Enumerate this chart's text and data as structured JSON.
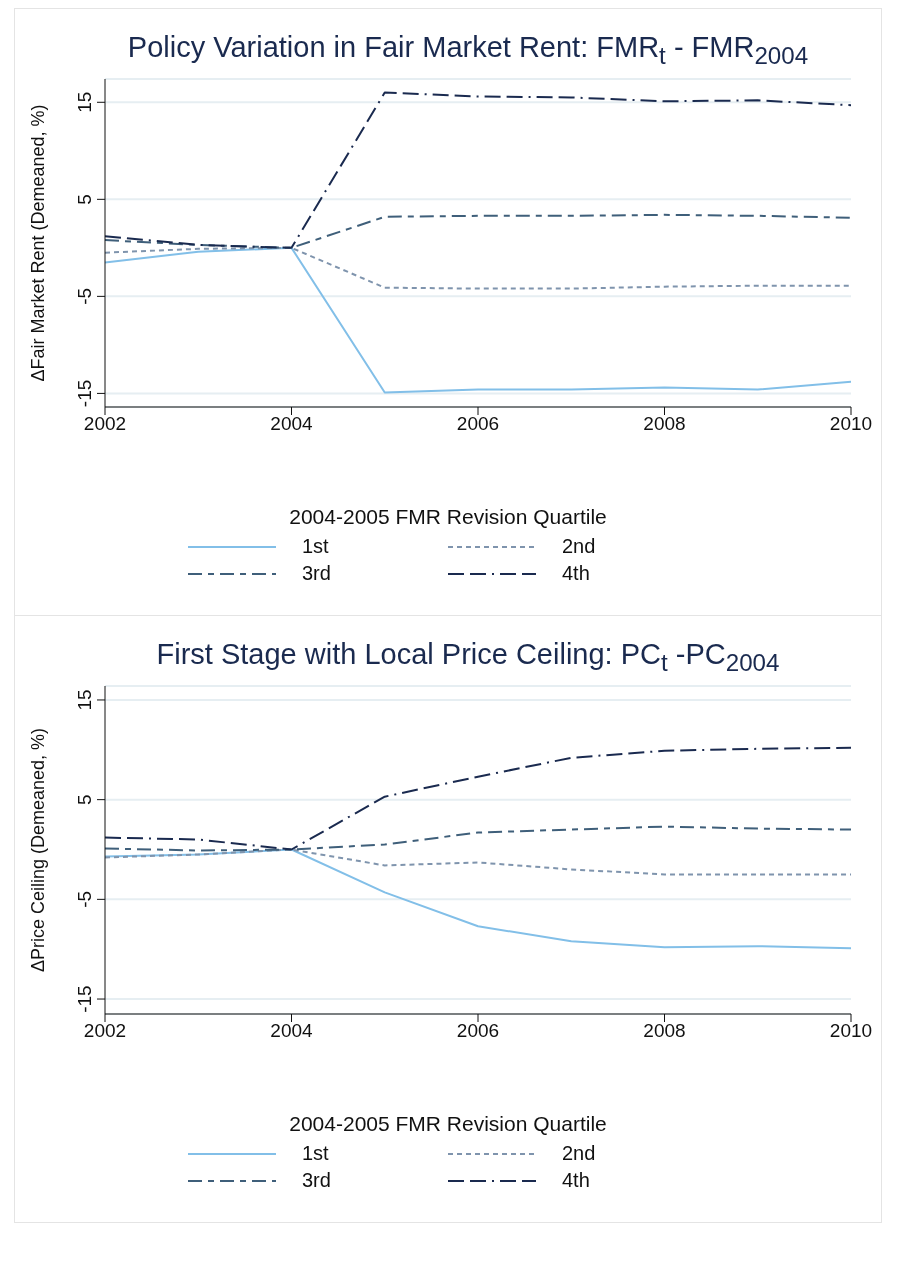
{
  "chart_data": [
    {
      "type": "line",
      "title": "Policy Variation in Fair Market Rent: FMR$_{t}$ - FMR$_{2004}$",
      "ylabel": "ΔFair Market Rent (Demeaned, %)",
      "legend_title": "2004-2005 FMR Revision Quartile",
      "x": [
        2002,
        2003,
        2004,
        2005,
        2006,
        2007,
        2008,
        2009,
        2010
      ],
      "series": [
        {
          "name": "1st",
          "color": "#82bfe8",
          "line_style": "solid",
          "values": [
            -1.5,
            -0.4,
            0.0,
            -14.9,
            -14.6,
            -14.6,
            -14.4,
            -14.6,
            -13.8
          ]
        },
        {
          "name": "2nd",
          "color": "#7f94ad",
          "line_style": "dashed",
          "values": [
            -0.5,
            -0.1,
            0.0,
            -4.1,
            -4.2,
            -4.2,
            -4.0,
            -3.9,
            -3.9
          ]
        },
        {
          "name": "3rd",
          "color": "#3f5f7a",
          "line_style": "dashed",
          "values": [
            0.8,
            0.3,
            0.0,
            3.2,
            3.3,
            3.3,
            3.4,
            3.3,
            3.1
          ]
        },
        {
          "name": "4th",
          "color": "#1a2a4f",
          "line_style": "dashed",
          "values": [
            1.2,
            0.3,
            0.0,
            16.0,
            15.6,
            15.5,
            15.1,
            15.2,
            14.7
          ]
        }
      ],
      "xlim": [
        2002,
        2010
      ],
      "xticks": [
        2002,
        2004,
        2006,
        2008,
        2010
      ],
      "ylim": [
        -16.4,
        17.4
      ],
      "yticks": [
        -15,
        -5,
        5,
        15
      ],
      "grid": "y",
      "legend": "bottom",
      "marker": "none"
    },
    {
      "type": "line",
      "title": "First Stage with Local Price Ceiling: PC$_{t}$ -PC$_{2004}$",
      "ylabel": "ΔPrice Ceiling (Demeaned, %)",
      "legend_title": "2004-2005 FMR Revision Quartile",
      "x": [
        2002,
        2003,
        2004,
        2005,
        2006,
        2007,
        2008,
        2009,
        2010
      ],
      "series": [
        {
          "name": "1st",
          "color": "#82bfe8",
          "line_style": "solid",
          "values": [
            -0.7,
            -0.5,
            0.0,
            -4.3,
            -7.7,
            -9.2,
            -9.8,
            -9.7,
            -9.9
          ]
        },
        {
          "name": "2nd",
          "color": "#7f94ad",
          "line_style": "dashed",
          "values": [
            -0.8,
            -0.5,
            0.0,
            -1.6,
            -1.3,
            -2.0,
            -2.5,
            -2.5,
            -2.5
          ]
        },
        {
          "name": "3rd",
          "color": "#3f5f7a",
          "line_style": "dashed",
          "values": [
            0.1,
            -0.1,
            0.0,
            0.5,
            1.7,
            2.0,
            2.3,
            2.1,
            2.0
          ]
        },
        {
          "name": "4th",
          "color": "#1a2a4f",
          "line_style": "dashed",
          "values": [
            1.2,
            1.0,
            0.0,
            5.3,
            7.3,
            9.2,
            9.9,
            10.1,
            10.2
          ]
        }
      ],
      "xlim": [
        2002,
        2010
      ],
      "xticks": [
        2002,
        2004,
        2006,
        2008,
        2010
      ],
      "ylim": [
        -16.5,
        16.4
      ],
      "yticks": [
        -15,
        -5,
        5,
        15
      ],
      "grid": "y",
      "legend": "bottom",
      "marker": "none"
    }
  ]
}
